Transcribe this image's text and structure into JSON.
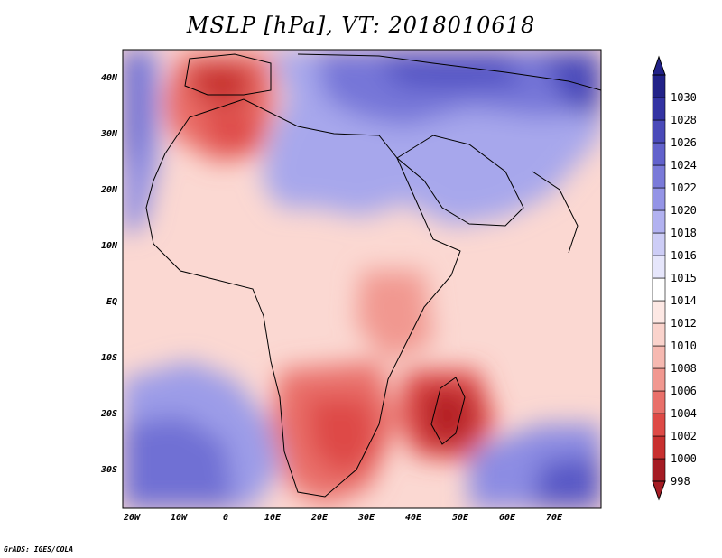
{
  "title": "MSLP [hPa], VT: 2018010618",
  "credit": "GrADS: IGES/COLA",
  "lat_labels": [
    "40N",
    "30N",
    "20N",
    "10N",
    "EQ",
    "10S",
    "20S",
    "30S"
  ],
  "lon_labels": [
    "20W",
    "10W",
    "0",
    "10E",
    "20E",
    "30E",
    "40E",
    "50E",
    "60E",
    "70E"
  ],
  "colorbar": {
    "levels": [
      "998",
      "1000",
      "1002",
      "1004",
      "1006",
      "1008",
      "1010",
      "1012",
      "1014",
      "1015",
      "1016",
      "1018",
      "1020",
      "1022",
      "1024",
      "1026",
      "1028",
      "1030"
    ],
    "colors": [
      "#a51c24",
      "#c8302f",
      "#de4a46",
      "#e9706a",
      "#f19890",
      "#f6b9b1",
      "#fad3cc",
      "#fde8e4",
      "#ffffff",
      "#e6e6fb",
      "#cdcdf6",
      "#b2b2f0",
      "#9494e6",
      "#7a7ad9",
      "#6262cc",
      "#4a4ab9",
      "#3333a3",
      "#222288"
    ]
  },
  "pressure_centers": [
    {
      "name": "madagascar-low",
      "lon": 47,
      "lat": -20,
      "value": 999
    },
    {
      "name": "southern-africa-low",
      "lon": 22,
      "lat": -24,
      "value": 1001
    },
    {
      "name": "iberia-low",
      "lon": -3,
      "lat": 39,
      "value": 1002
    },
    {
      "name": "morocco-low",
      "lon": 0,
      "lat": 33,
      "value": 1005
    },
    {
      "name": "east-africa-low",
      "lon": 33,
      "lat": -2,
      "value": 1008
    },
    {
      "name": "mediterranean-high",
      "lon": 30,
      "lat": 38,
      "value": 1026
    },
    {
      "name": "sahara-high",
      "lon": 20,
      "lat": 25,
      "value": 1022
    },
    {
      "name": "south-atlantic-high",
      "lon": -15,
      "lat": -28,
      "value": 1022
    },
    {
      "name": "south-indian-high",
      "lon": 65,
      "lat": -32,
      "value": 1022
    }
  ]
}
